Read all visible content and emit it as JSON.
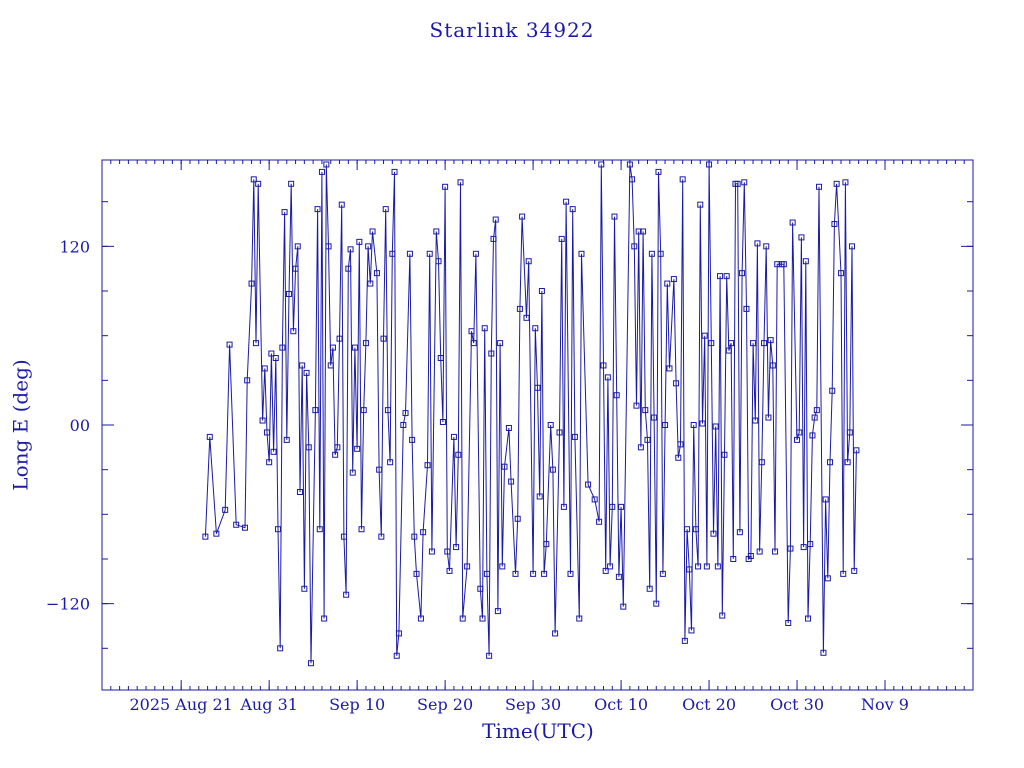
{
  "chart_data": {
    "type": "line",
    "title": "Starlink 34922",
    "xlabel": "Time(UTC)",
    "ylabel": "Long E (deg)",
    "ylim": [
      -178,
      178
    ],
    "xlim": [
      "2025-08-12",
      "2025-11-19"
    ],
    "yticks": [
      -120,
      0,
      120
    ],
    "ytick_labels": [
      "−120",
      "00",
      "120"
    ],
    "xticks": [
      {
        "date": "2025-08-21",
        "label": "2025 Aug 21"
      },
      {
        "date": "2025-08-31",
        "label": "Aug 31"
      },
      {
        "date": "2025-09-10",
        "label": "Sep 10"
      },
      {
        "date": "2025-09-20",
        "label": "Sep 20"
      },
      {
        "date": "2025-09-30",
        "label": "Sep 30"
      },
      {
        "date": "2025-10-10",
        "label": "Oct 10"
      },
      {
        "date": "2025-10-20",
        "label": "Oct 20"
      },
      {
        "date": "2025-10-30",
        "label": "Oct 30"
      },
      {
        "date": "2025-11-09",
        "label": "Nov 9"
      }
    ],
    "grid": false,
    "color": "#1a1aa6",
    "series": [
      {
        "name": "",
        "points": [
          [
            "2025-08-23T18:00",
            -75
          ],
          [
            "2025-08-24T06:00",
            -8
          ],
          [
            "2025-08-25T00:00",
            -73
          ],
          [
            "2025-08-26T00:00",
            -57
          ],
          [
            "2025-08-26T12:00",
            54
          ],
          [
            "2025-08-27T06:00",
            -67
          ],
          [
            "2025-08-28T06:00",
            -69
          ],
          [
            "2025-08-28T12:00",
            30
          ],
          [
            "2025-08-29T00:00",
            95
          ],
          [
            "2025-08-29T06:00",
            165
          ],
          [
            "2025-08-29T12:00",
            55
          ],
          [
            "2025-08-29T18:00",
            162
          ],
          [
            "2025-08-30T06:00",
            3
          ],
          [
            "2025-08-30T12:00",
            38
          ],
          [
            "2025-08-30T18:00",
            -5
          ],
          [
            "2025-08-31T00:00",
            -25
          ],
          [
            "2025-08-31T06:00",
            48
          ],
          [
            "2025-08-31T12:00",
            -18
          ],
          [
            "2025-08-31T18:00",
            45
          ],
          [
            "2025-09-01T00:00",
            -70
          ],
          [
            "2025-09-01T06:00",
            -150
          ],
          [
            "2025-09-01T12:00",
            52
          ],
          [
            "2025-09-01T18:00",
            143
          ],
          [
            "2025-09-02T00:00",
            -10
          ],
          [
            "2025-09-02T06:00",
            88
          ],
          [
            "2025-09-02T12:00",
            162
          ],
          [
            "2025-09-02T18:00",
            63
          ],
          [
            "2025-09-03T00:00",
            105
          ],
          [
            "2025-09-03T06:00",
            120
          ],
          [
            "2025-09-03T12:00",
            -45
          ],
          [
            "2025-09-03T18:00",
            40
          ],
          [
            "2025-09-04T00:00",
            -110
          ],
          [
            "2025-09-04T06:00",
            35
          ],
          [
            "2025-09-04T12:00",
            -15
          ],
          [
            "2025-09-04T18:00",
            -160
          ],
          [
            "2025-09-05T06:00",
            10
          ],
          [
            "2025-09-05T12:00",
            145
          ],
          [
            "2025-09-05T18:00",
            -70
          ],
          [
            "2025-09-06T00:00",
            170
          ],
          [
            "2025-09-06T06:00",
            -130
          ],
          [
            "2025-09-06T12:00",
            175
          ],
          [
            "2025-09-06T18:00",
            120
          ],
          [
            "2025-09-07T00:00",
            40
          ],
          [
            "2025-09-07T06:00",
            52
          ],
          [
            "2025-09-07T12:00",
            -20
          ],
          [
            "2025-09-07T18:00",
            -15
          ],
          [
            "2025-09-08T00:00",
            58
          ],
          [
            "2025-09-08T06:00",
            148
          ],
          [
            "2025-09-08T12:00",
            -75
          ],
          [
            "2025-09-08T18:00",
            -114
          ],
          [
            "2025-09-09T00:00",
            105
          ],
          [
            "2025-09-09T06:00",
            118
          ],
          [
            "2025-09-09T12:00",
            -32
          ],
          [
            "2025-09-09T18:00",
            52
          ],
          [
            "2025-09-10T00:00",
            -16
          ],
          [
            "2025-09-10T06:00",
            123
          ],
          [
            "2025-09-10T12:00",
            -70
          ],
          [
            "2025-09-10T18:00",
            10
          ],
          [
            "2025-09-11T00:00",
            55
          ],
          [
            "2025-09-11T06:00",
            120
          ],
          [
            "2025-09-11T12:00",
            95
          ],
          [
            "2025-09-11T18:00",
            130
          ],
          [
            "2025-09-12T06:00",
            102
          ],
          [
            "2025-09-12T12:00",
            -30
          ],
          [
            "2025-09-12T18:00",
            -75
          ],
          [
            "2025-09-13T00:00",
            58
          ],
          [
            "2025-09-13T06:00",
            145
          ],
          [
            "2025-09-13T12:00",
            10
          ],
          [
            "2025-09-13T18:00",
            -25
          ],
          [
            "2025-09-14T00:00",
            115
          ],
          [
            "2025-09-14T06:00",
            170
          ],
          [
            "2025-09-14T12:00",
            -155
          ],
          [
            "2025-09-14T18:00",
            -140
          ],
          [
            "2025-09-15T06:00",
            0
          ],
          [
            "2025-09-15T12:00",
            8
          ],
          [
            "2025-09-16T00:00",
            115
          ],
          [
            "2025-09-16T06:00",
            -10
          ],
          [
            "2025-09-16T12:00",
            -75
          ],
          [
            "2025-09-16T18:00",
            -100
          ],
          [
            "2025-09-17T06:00",
            -130
          ],
          [
            "2025-09-17T12:00",
            -72
          ],
          [
            "2025-09-18T00:00",
            -27
          ],
          [
            "2025-09-18T06:00",
            115
          ],
          [
            "2025-09-18T12:00",
            -85
          ],
          [
            "2025-09-19T00:00",
            130
          ],
          [
            "2025-09-19T06:00",
            110
          ],
          [
            "2025-09-19T12:00",
            45
          ],
          [
            "2025-09-19T18:00",
            2
          ],
          [
            "2025-09-20T00:00",
            160
          ],
          [
            "2025-09-20T06:00",
            -85
          ],
          [
            "2025-09-20T12:00",
            -98
          ],
          [
            "2025-09-21T00:00",
            -8
          ],
          [
            "2025-09-21T06:00",
            -82
          ],
          [
            "2025-09-21T12:00",
            -20
          ],
          [
            "2025-09-21T18:00",
            163
          ],
          [
            "2025-09-22T00:00",
            -130
          ],
          [
            "2025-09-22T12:00",
            -95
          ],
          [
            "2025-09-23T00:00",
            63
          ],
          [
            "2025-09-23T06:00",
            55
          ],
          [
            "2025-09-23T12:00",
            115
          ],
          [
            "2025-09-24T00:00",
            -110
          ],
          [
            "2025-09-24T06:00",
            -130
          ],
          [
            "2025-09-24T12:00",
            65
          ],
          [
            "2025-09-24T18:00",
            -100
          ],
          [
            "2025-09-25T00:00",
            -155
          ],
          [
            "2025-09-25T06:00",
            48
          ],
          [
            "2025-09-25T12:00",
            125
          ],
          [
            "2025-09-25T18:00",
            138
          ],
          [
            "2025-09-26T00:00",
            -125
          ],
          [
            "2025-09-26T06:00",
            55
          ],
          [
            "2025-09-26T12:00",
            -95
          ],
          [
            "2025-09-26T18:00",
            -28
          ],
          [
            "2025-09-27T06:00",
            -2
          ],
          [
            "2025-09-27T12:00",
            -38
          ],
          [
            "2025-09-28T00:00",
            -100
          ],
          [
            "2025-09-28T06:00",
            -63
          ],
          [
            "2025-09-28T12:00",
            78
          ],
          [
            "2025-09-28T18:00",
            140
          ],
          [
            "2025-09-29T06:00",
            72
          ],
          [
            "2025-09-29T12:00",
            110
          ],
          [
            "2025-09-30T00:00",
            -100
          ],
          [
            "2025-09-30T06:00",
            65
          ],
          [
            "2025-09-30T12:00",
            25
          ],
          [
            "2025-09-30T18:00",
            -48
          ],
          [
            "2025-10-01T00:00",
            90
          ],
          [
            "2025-10-01T06:00",
            -100
          ],
          [
            "2025-10-01T12:00",
            -80
          ],
          [
            "2025-10-02T00:00",
            0
          ],
          [
            "2025-10-02T06:00",
            -30
          ],
          [
            "2025-10-02T12:00",
            -140
          ],
          [
            "2025-10-03T00:00",
            -5
          ],
          [
            "2025-10-03T06:00",
            125
          ],
          [
            "2025-10-03T12:00",
            -55
          ],
          [
            "2025-10-03T18:00",
            150
          ],
          [
            "2025-10-04T06:00",
            -100
          ],
          [
            "2025-10-04T12:00",
            145
          ],
          [
            "2025-10-04T18:00",
            -8
          ],
          [
            "2025-10-05T06:00",
            -130
          ],
          [
            "2025-10-05T12:00",
            115
          ],
          [
            "2025-10-06T06:00",
            -40
          ],
          [
            "2025-10-07T00:00",
            -50
          ],
          [
            "2025-10-07T12:00",
            -65
          ],
          [
            "2025-10-07T18:00",
            175
          ],
          [
            "2025-10-08T00:00",
            40
          ],
          [
            "2025-10-08T06:00",
            -98
          ],
          [
            "2025-10-08T12:00",
            32
          ],
          [
            "2025-10-08T18:00",
            -95
          ],
          [
            "2025-10-09T00:00",
            -55
          ],
          [
            "2025-10-09T06:00",
            140
          ],
          [
            "2025-10-09T12:00",
            20
          ],
          [
            "2025-10-09T18:00",
            -102
          ],
          [
            "2025-10-10T00:00",
            -55
          ],
          [
            "2025-10-10T06:00",
            -122
          ],
          [
            "2025-10-11T00:00",
            175
          ],
          [
            "2025-10-11T06:00",
            165
          ],
          [
            "2025-10-11T12:00",
            120
          ],
          [
            "2025-10-11T18:00",
            13
          ],
          [
            "2025-10-12T00:00",
            130
          ],
          [
            "2025-10-12T06:00",
            -15
          ],
          [
            "2025-10-12T12:00",
            130
          ],
          [
            "2025-10-12T18:00",
            10
          ],
          [
            "2025-10-13T00:00",
            -10
          ],
          [
            "2025-10-13T06:00",
            -110
          ],
          [
            "2025-10-13T12:00",
            115
          ],
          [
            "2025-10-13T18:00",
            5
          ],
          [
            "2025-10-14T00:00",
            -120
          ],
          [
            "2025-10-14T06:00",
            170
          ],
          [
            "2025-10-14T12:00",
            115
          ],
          [
            "2025-10-14T18:00",
            -100
          ],
          [
            "2025-10-15T00:00",
            0
          ],
          [
            "2025-10-15T06:00",
            95
          ],
          [
            "2025-10-15T12:00",
            38
          ],
          [
            "2025-10-16T00:00",
            98
          ],
          [
            "2025-10-16T06:00",
            28
          ],
          [
            "2025-10-16T12:00",
            -22
          ],
          [
            "2025-10-16T18:00",
            -13
          ],
          [
            "2025-10-17T00:00",
            165
          ],
          [
            "2025-10-17T06:00",
            -145
          ],
          [
            "2025-10-17T12:00",
            -70
          ],
          [
            "2025-10-17T18:00",
            -97
          ],
          [
            "2025-10-18T00:00",
            -138
          ],
          [
            "2025-10-18T06:00",
            0
          ],
          [
            "2025-10-18T12:00",
            -70
          ],
          [
            "2025-10-18T18:00",
            -95
          ],
          [
            "2025-10-19T00:00",
            148
          ],
          [
            "2025-10-19T06:00",
            1
          ],
          [
            "2025-10-19T12:00",
            60
          ],
          [
            "2025-10-19T18:00",
            -95
          ],
          [
            "2025-10-20T00:00",
            175
          ],
          [
            "2025-10-20T06:00",
            55
          ],
          [
            "2025-10-20T12:00",
            -73
          ],
          [
            "2025-10-20T18:00",
            -1
          ],
          [
            "2025-10-21T00:00",
            -95
          ],
          [
            "2025-10-21T06:00",
            100
          ],
          [
            "2025-10-21T12:00",
            -128
          ],
          [
            "2025-10-21T18:00",
            -20
          ],
          [
            "2025-10-22T00:00",
            100
          ],
          [
            "2025-10-22T06:00",
            50
          ],
          [
            "2025-10-22T12:00",
            55
          ],
          [
            "2025-10-22T18:00",
            -90
          ],
          [
            "2025-10-23T00:00",
            162
          ],
          [
            "2025-10-23T06:00",
            162
          ],
          [
            "2025-10-23T12:00",
            -72
          ],
          [
            "2025-10-23T18:00",
            102
          ],
          [
            "2025-10-24T00:00",
            163
          ],
          [
            "2025-10-24T06:00",
            78
          ],
          [
            "2025-10-24T12:00",
            -90
          ],
          [
            "2025-10-24T18:00",
            -88
          ],
          [
            "2025-10-25T00:00",
            55
          ],
          [
            "2025-10-25T06:00",
            3
          ],
          [
            "2025-10-25T12:00",
            122
          ],
          [
            "2025-10-25T18:00",
            -85
          ],
          [
            "2025-10-26T00:00",
            -25
          ],
          [
            "2025-10-26T06:00",
            55
          ],
          [
            "2025-10-26T12:00",
            120
          ],
          [
            "2025-10-26T18:00",
            5
          ],
          [
            "2025-10-27T00:00",
            57
          ],
          [
            "2025-10-27T06:00",
            40
          ],
          [
            "2025-10-27T12:00",
            -85
          ],
          [
            "2025-10-27T18:00",
            108
          ],
          [
            "2025-10-28T06:00",
            108
          ],
          [
            "2025-10-28T12:00",
            108
          ],
          [
            "2025-10-29T00:00",
            -133
          ],
          [
            "2025-10-29T06:00",
            -83
          ],
          [
            "2025-10-29T12:00",
            136
          ],
          [
            "2025-10-30T00:00",
            -10
          ],
          [
            "2025-10-30T06:00",
            -5
          ],
          [
            "2025-10-30T12:00",
            126
          ],
          [
            "2025-10-30T18:00",
            -82
          ],
          [
            "2025-10-31T00:00",
            110
          ],
          [
            "2025-10-31T06:00",
            -130
          ],
          [
            "2025-10-31T12:00",
            -80
          ],
          [
            "2025-10-31T18:00",
            -7
          ],
          [
            "2025-11-01T00:00",
            5
          ],
          [
            "2025-11-01T06:00",
            10
          ],
          [
            "2025-11-01T12:00",
            160
          ],
          [
            "2025-11-02T00:00",
            -153
          ],
          [
            "2025-11-02T06:00",
            -50
          ],
          [
            "2025-11-02T12:00",
            -103
          ],
          [
            "2025-11-02T18:00",
            -25
          ],
          [
            "2025-11-03T00:00",
            23
          ],
          [
            "2025-11-03T06:00",
            135
          ],
          [
            "2025-11-03T12:00",
            162
          ],
          [
            "2025-11-04T00:00",
            102
          ],
          [
            "2025-11-04T06:00",
            -100
          ],
          [
            "2025-11-04T12:00",
            163
          ],
          [
            "2025-11-04T18:00",
            -25
          ],
          [
            "2025-11-05T00:00",
            -5
          ],
          [
            "2025-11-05T06:00",
            120
          ],
          [
            "2025-11-05T12:00",
            -98
          ],
          [
            "2025-11-05T18:00",
            -17
          ]
        ]
      }
    ]
  }
}
